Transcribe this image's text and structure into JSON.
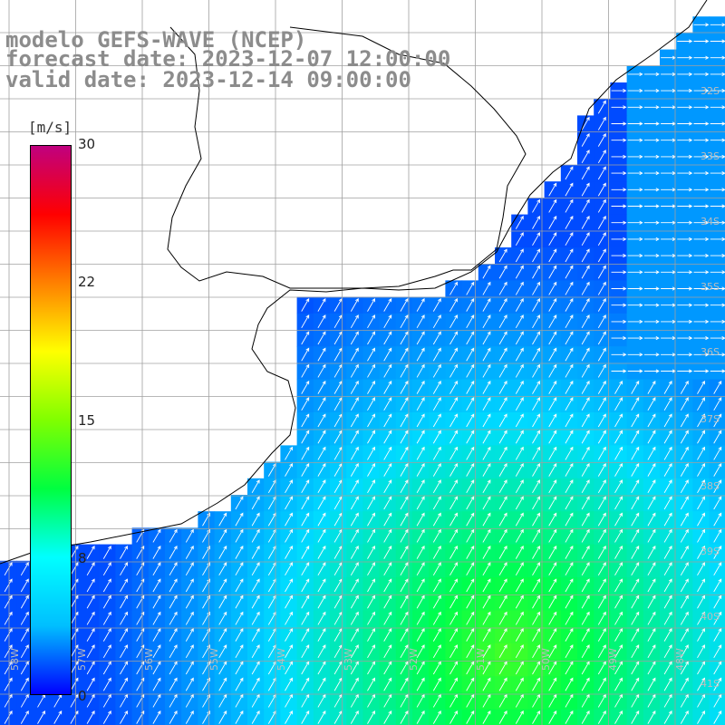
{
  "title": {
    "model": "modelo GEFS-WAVE (NCEP)",
    "forecast": "forecast date: 2023-12-07 12:00:00",
    "valid": "valid date: 2023-12-14 09:00:00"
  },
  "colorbar": {
    "unit": "[m/s]",
    "ticks": [
      "30",
      "22",
      "15",
      "8",
      "0"
    ],
    "colors": [
      "#0000ff",
      "#00bfff",
      "#00ffff",
      "#00ff40",
      "#80ff00",
      "#ffff00",
      "#ff8000",
      "#ff0000",
      "#c0007f"
    ]
  },
  "grid": {
    "lat_labels": [
      "32S",
      "33S",
      "34S",
      "35S",
      "36S",
      "37S",
      "38S",
      "39S",
      "40S",
      "41S"
    ],
    "lon_labels": [
      "58W",
      "57W",
      "56W",
      "55W",
      "54W",
      "53W",
      "52W",
      "51W",
      "50W",
      "49W",
      "48W"
    ]
  },
  "colors": {
    "land": "#ffffff",
    "coast": "#000000",
    "grid_line": "#a0a0a0",
    "arrow": "#ffffff",
    "title_text": "#8c8c8c"
  }
}
